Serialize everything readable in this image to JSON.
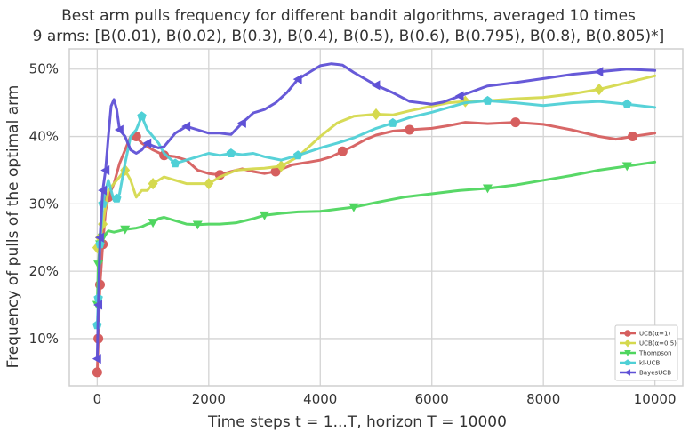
{
  "chart_data": {
    "type": "line",
    "title": "Best arm pulls frequency for different bandit algorithms, averaged 10 times",
    "subtitle": "9 arms: [B(0.01), B(0.02), B(0.3), B(0.4), B(0.5), B(0.6), B(0.795), B(0.8), B(0.805)*]",
    "xlabel": "Time steps t = 1...T, horizon T = 10000",
    "ylabel": "Frequency of pulls of the optimal arm",
    "xlim": [
      -500,
      10500
    ],
    "ylim": [
      3,
      53
    ],
    "x_ticks": [
      0,
      2000,
      4000,
      6000,
      8000,
      10000
    ],
    "x_tick_labels": [
      "0",
      "2000",
      "4000",
      "6000",
      "8000",
      "10000"
    ],
    "y_ticks": [
      10,
      20,
      30,
      40,
      50
    ],
    "y_tick_labels": [
      "10%",
      "20%",
      "30%",
      "40%",
      "50%"
    ],
    "grid": true,
    "legend_position": "bottom-right",
    "series": [
      {
        "name": "UCB(α=1)",
        "color": "#d65f5f",
        "marker": "circle",
        "points": [
          [
            0,
            5
          ],
          [
            20,
            10
          ],
          [
            50,
            18
          ],
          [
            100,
            24
          ],
          [
            150,
            29
          ],
          [
            200,
            31
          ],
          [
            300,
            33
          ],
          [
            400,
            36
          ],
          [
            500,
            38
          ],
          [
            600,
            40
          ],
          [
            700,
            40
          ],
          [
            800,
            39
          ],
          [
            900,
            38.5
          ],
          [
            1000,
            38
          ],
          [
            1100,
            37.6
          ],
          [
            1200,
            37.2
          ],
          [
            1400,
            37
          ],
          [
            1600,
            36.5
          ],
          [
            1800,
            35
          ],
          [
            2000,
            34.5
          ],
          [
            2200,
            34.3
          ],
          [
            2400,
            34.8
          ],
          [
            2600,
            35.2
          ],
          [
            2800,
            34.8
          ],
          [
            3000,
            34.5
          ],
          [
            3200,
            34.8
          ],
          [
            3500,
            35.8
          ],
          [
            3800,
            36.2
          ],
          [
            4000,
            36.5
          ],
          [
            4200,
            37
          ],
          [
            4400,
            37.8
          ],
          [
            4600,
            38.6
          ],
          [
            4800,
            39.5
          ],
          [
            5000,
            40.2
          ],
          [
            5300,
            40.8
          ],
          [
            5600,
            41
          ],
          [
            6000,
            41.2
          ],
          [
            6300,
            41.6
          ],
          [
            6600,
            42.1
          ],
          [
            7000,
            41.9
          ],
          [
            7500,
            42.1
          ],
          [
            8000,
            41.8
          ],
          [
            8500,
            41
          ],
          [
            9000,
            40
          ],
          [
            9300,
            39.6
          ],
          [
            9600,
            40
          ],
          [
            10000,
            40.5
          ]
        ]
      },
      {
        "name": "UCB(α=0.5)",
        "color": "#d5d94e",
        "marker": "diamond",
        "points": [
          [
            0,
            23.5
          ],
          [
            50,
            25
          ],
          [
            100,
            27
          ],
          [
            200,
            32
          ],
          [
            300,
            33
          ],
          [
            400,
            34
          ],
          [
            500,
            35
          ],
          [
            600,
            33.5
          ],
          [
            700,
            31
          ],
          [
            800,
            32
          ],
          [
            900,
            32
          ],
          [
            1000,
            33
          ],
          [
            1200,
            34
          ],
          [
            1400,
            33.5
          ],
          [
            1600,
            33
          ],
          [
            1800,
            33
          ],
          [
            2000,
            33
          ],
          [
            2200,
            34
          ],
          [
            2500,
            35
          ],
          [
            2800,
            35.2
          ],
          [
            3000,
            35.3
          ],
          [
            3300,
            35.6
          ],
          [
            3600,
            37
          ],
          [
            4000,
            40
          ],
          [
            4300,
            42
          ],
          [
            4600,
            43
          ],
          [
            5000,
            43.3
          ],
          [
            5300,
            43.2
          ],
          [
            5600,
            43.8
          ],
          [
            6000,
            44.5
          ],
          [
            6300,
            45
          ],
          [
            6600,
            45.2
          ],
          [
            7000,
            45.3
          ],
          [
            7500,
            45.6
          ],
          [
            8000,
            45.8
          ],
          [
            8500,
            46.3
          ],
          [
            9000,
            47
          ],
          [
            9500,
            48
          ],
          [
            10000,
            49
          ]
        ]
      },
      {
        "name": "Thompson",
        "color": "#4fd65f",
        "marker": "triangle-down",
        "points": [
          [
            0,
            15
          ],
          [
            20,
            21
          ],
          [
            50,
            24
          ],
          [
            100,
            25
          ],
          [
            200,
            26
          ],
          [
            300,
            25.8
          ],
          [
            400,
            26
          ],
          [
            500,
            26.2
          ],
          [
            600,
            26.3
          ],
          [
            700,
            26.4
          ],
          [
            800,
            26.6
          ],
          [
            900,
            27
          ],
          [
            1000,
            27.2
          ],
          [
            1100,
            27.8
          ],
          [
            1200,
            28
          ],
          [
            1400,
            27.5
          ],
          [
            1600,
            27
          ],
          [
            1800,
            26.9
          ],
          [
            2000,
            27
          ],
          [
            2200,
            27
          ],
          [
            2500,
            27.2
          ],
          [
            2800,
            27.8
          ],
          [
            3000,
            28.3
          ],
          [
            3300,
            28.6
          ],
          [
            3600,
            28.8
          ],
          [
            4000,
            28.9
          ],
          [
            4300,
            29.2
          ],
          [
            4600,
            29.5
          ],
          [
            5000,
            30.2
          ],
          [
            5500,
            31
          ],
          [
            6000,
            31.5
          ],
          [
            6500,
            32
          ],
          [
            7000,
            32.3
          ],
          [
            7500,
            32.8
          ],
          [
            8000,
            33.5
          ],
          [
            8500,
            34.2
          ],
          [
            9000,
            35
          ],
          [
            9500,
            35.6
          ],
          [
            10000,
            36.2
          ]
        ]
      },
      {
        "name": "kl-UCB",
        "color": "#4fd0d6",
        "marker": "pentagon",
        "points": [
          [
            0,
            12
          ],
          [
            20,
            16
          ],
          [
            50,
            24
          ],
          [
            100,
            30
          ],
          [
            150,
            32
          ],
          [
            200,
            33.5
          ],
          [
            250,
            32
          ],
          [
            300,
            30.5
          ],
          [
            350,
            30.8
          ],
          [
            400,
            31.5
          ],
          [
            500,
            36
          ],
          [
            600,
            40
          ],
          [
            700,
            41
          ],
          [
            800,
            43
          ],
          [
            900,
            41
          ],
          [
            1000,
            40
          ],
          [
            1100,
            39
          ],
          [
            1200,
            37.5
          ],
          [
            1400,
            36
          ],
          [
            1600,
            36.5
          ],
          [
            1800,
            37
          ],
          [
            2000,
            37.5
          ],
          [
            2200,
            37.2
          ],
          [
            2400,
            37.5
          ],
          [
            2600,
            37.3
          ],
          [
            2800,
            37.5
          ],
          [
            3000,
            37
          ],
          [
            3300,
            36.5
          ],
          [
            3600,
            37.2
          ],
          [
            4000,
            38.3
          ],
          [
            4300,
            39
          ],
          [
            4600,
            39.8
          ],
          [
            5000,
            41.2
          ],
          [
            5300,
            42
          ],
          [
            5600,
            42.8
          ],
          [
            6000,
            43.6
          ],
          [
            6300,
            44.3
          ],
          [
            6600,
            45
          ],
          [
            7000,
            45.3
          ],
          [
            7500,
            45
          ],
          [
            8000,
            44.6
          ],
          [
            8500,
            45
          ],
          [
            9000,
            45.2
          ],
          [
            9500,
            44.8
          ],
          [
            10000,
            44.3
          ]
        ]
      },
      {
        "name": "BayesUCB",
        "color": "#5f51d6",
        "marker": "triangle-left",
        "points": [
          [
            0,
            7
          ],
          [
            20,
            15
          ],
          [
            50,
            25
          ],
          [
            100,
            32
          ],
          [
            150,
            35
          ],
          [
            200,
            40
          ],
          [
            250,
            44.5
          ],
          [
            300,
            45.5
          ],
          [
            350,
            44
          ],
          [
            400,
            41
          ],
          [
            500,
            40
          ],
          [
            600,
            38
          ],
          [
            700,
            37.5
          ],
          [
            800,
            38
          ],
          [
            900,
            39
          ],
          [
            1000,
            38.6
          ],
          [
            1100,
            38.3
          ],
          [
            1200,
            38.5
          ],
          [
            1400,
            40.5
          ],
          [
            1600,
            41.5
          ],
          [
            1800,
            41
          ],
          [
            2000,
            40.5
          ],
          [
            2200,
            40.5
          ],
          [
            2400,
            40.3
          ],
          [
            2600,
            42
          ],
          [
            2800,
            43.5
          ],
          [
            3000,
            44
          ],
          [
            3200,
            45
          ],
          [
            3400,
            46.5
          ],
          [
            3600,
            48.5
          ],
          [
            4000,
            50.5
          ],
          [
            4200,
            50.8
          ],
          [
            4400,
            50.6
          ],
          [
            4600,
            49.5
          ],
          [
            5000,
            47.6
          ],
          [
            5300,
            46.5
          ],
          [
            5600,
            45.2
          ],
          [
            6000,
            44.8
          ],
          [
            6200,
            45.1
          ],
          [
            6500,
            46
          ],
          [
            7000,
            47.5
          ],
          [
            7500,
            48
          ],
          [
            8000,
            48.6
          ],
          [
            8500,
            49.2
          ],
          [
            9000,
            49.6
          ],
          [
            9500,
            50
          ],
          [
            10000,
            49.8
          ]
        ]
      }
    ]
  }
}
